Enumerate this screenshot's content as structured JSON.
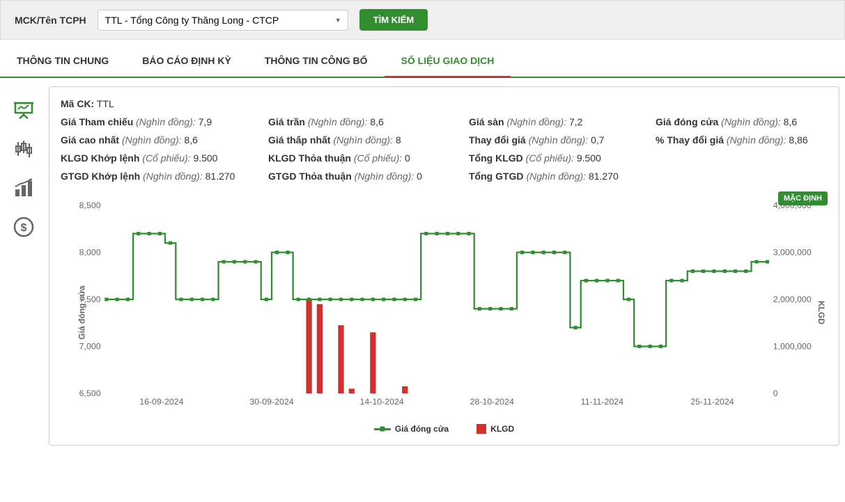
{
  "search": {
    "label": "MCK/Tên TCPH",
    "selected": "TTL - Tổng Công ty Thăng Long - CTCP",
    "button": "TÌM KIẾM"
  },
  "tabs": [
    {
      "label": "THÔNG TIN CHUNG",
      "active": false
    },
    {
      "label": "BÁO CÁO ĐỊNH KỲ",
      "active": false
    },
    {
      "label": "THÔNG TIN CÔNG BỐ",
      "active": false
    },
    {
      "label": "SỐ LIỆU GIAO DỊCH",
      "active": true
    }
  ],
  "stock": {
    "code_label": "Mã CK:",
    "code": "TTL"
  },
  "stats": [
    {
      "label": "Giá Tham chiếu",
      "unit": "(Nghìn đồng)",
      "value": "7,9"
    },
    {
      "label": "Giá trần",
      "unit": "(Nghìn đồng)",
      "value": "8,6"
    },
    {
      "label": "Giá sàn",
      "unit": "(Nghìn đồng)",
      "value": "7,2"
    },
    {
      "label": "Giá đóng cửa",
      "unit": "(Nghìn đồng)",
      "value": "8,6"
    },
    {
      "label": "Giá cao nhất",
      "unit": "(Nghìn đồng)",
      "value": "8,6"
    },
    {
      "label": "Giá thấp nhất",
      "unit": "(Nghìn đồng)",
      "value": "8"
    },
    {
      "label": "Thay đổi giá",
      "unit": "(Nghìn đồng)",
      "value": "0,7"
    },
    {
      "label": "% Thay đổi giá",
      "unit": "(Nghìn đồng)",
      "value": "8,86"
    },
    {
      "label": "KLGD Khớp lệnh",
      "unit": "(Cổ phiếu)",
      "value": "9.500"
    },
    {
      "label": "KLGD Thỏa thuận",
      "unit": "(Cổ phiếu)",
      "value": "0"
    },
    {
      "label": "Tổng KLGD",
      "unit": "(Cổ phiếu)",
      "value": "9.500"
    },
    {
      "label": "",
      "unit": "",
      "value": ""
    },
    {
      "label": "GTGD Khớp lệnh",
      "unit": "(Nghìn đồng)",
      "value": "81.270"
    },
    {
      "label": "GTGD Thỏa thuận",
      "unit": "(Nghìn đồng)",
      "value": "0"
    },
    {
      "label": "Tổng GTGD",
      "unit": "(Nghìn đồng)",
      "value": "81.270"
    },
    {
      "label": "",
      "unit": "",
      "value": ""
    }
  ],
  "chart": {
    "badge": "MẶC ĐỊNH",
    "y1_label": "Giá đóng cửa",
    "y2_label": "KLGD",
    "y1_ticks": [
      "6,500",
      "7,000",
      "7,500",
      "8,000",
      "8,500"
    ],
    "y1_min": 6500,
    "y1_max": 8500,
    "y2_ticks": [
      "0",
      "1,000,000",
      "2,000,000",
      "3,000,000",
      "4,000,000"
    ],
    "y2_min": 0,
    "y2_max": 4000000,
    "x_ticks": [
      "16-09-2024",
      "30-09-2024",
      "14-10-2024",
      "28-10-2024",
      "11-11-2024",
      "25-11-2024"
    ],
    "line_color": "#2f8f2f",
    "bar_color": "#d32f2f",
    "grid_color": "#e8e8e8",
    "price_series": [
      7500,
      7500,
      7500,
      8200,
      8200,
      8200,
      8100,
      7500,
      7500,
      7500,
      7500,
      7900,
      7900,
      7900,
      7900,
      7500,
      8000,
      8000,
      7500,
      7500,
      7500,
      7500,
      7500,
      7500,
      7500,
      7500,
      7500,
      7500,
      7500,
      7500,
      8200,
      8200,
      8200,
      8200,
      8200,
      7400,
      7400,
      7400,
      7400,
      8000,
      8000,
      8000,
      8000,
      8000,
      7200,
      7700,
      7700,
      7700,
      7700,
      7500,
      7000,
      7000,
      7000,
      7700,
      7700,
      7800,
      7800,
      7800,
      7800,
      7800,
      7800,
      7900,
      7900
    ],
    "volume_series": [
      0,
      0,
      0,
      0,
      0,
      0,
      0,
      0,
      0,
      0,
      0,
      0,
      0,
      0,
      0,
      0,
      0,
      0,
      0,
      2000000,
      1900000,
      0,
      1450000,
      100000,
      0,
      1300000,
      0,
      0,
      150000,
      0,
      0,
      0,
      0,
      0,
      0,
      0,
      0,
      0,
      0,
      0,
      0,
      0,
      0,
      0,
      0,
      0,
      0,
      0,
      0,
      0,
      0,
      0,
      0,
      0,
      0,
      0,
      0,
      0,
      0,
      0,
      0,
      0,
      0
    ],
    "legend": [
      {
        "label": "Giá đóng cửa",
        "type": "line"
      },
      {
        "label": "KLGD",
        "type": "bar"
      }
    ]
  },
  "colors": {
    "primary": "#2f8f2f",
    "accent": "#d32f2f"
  }
}
